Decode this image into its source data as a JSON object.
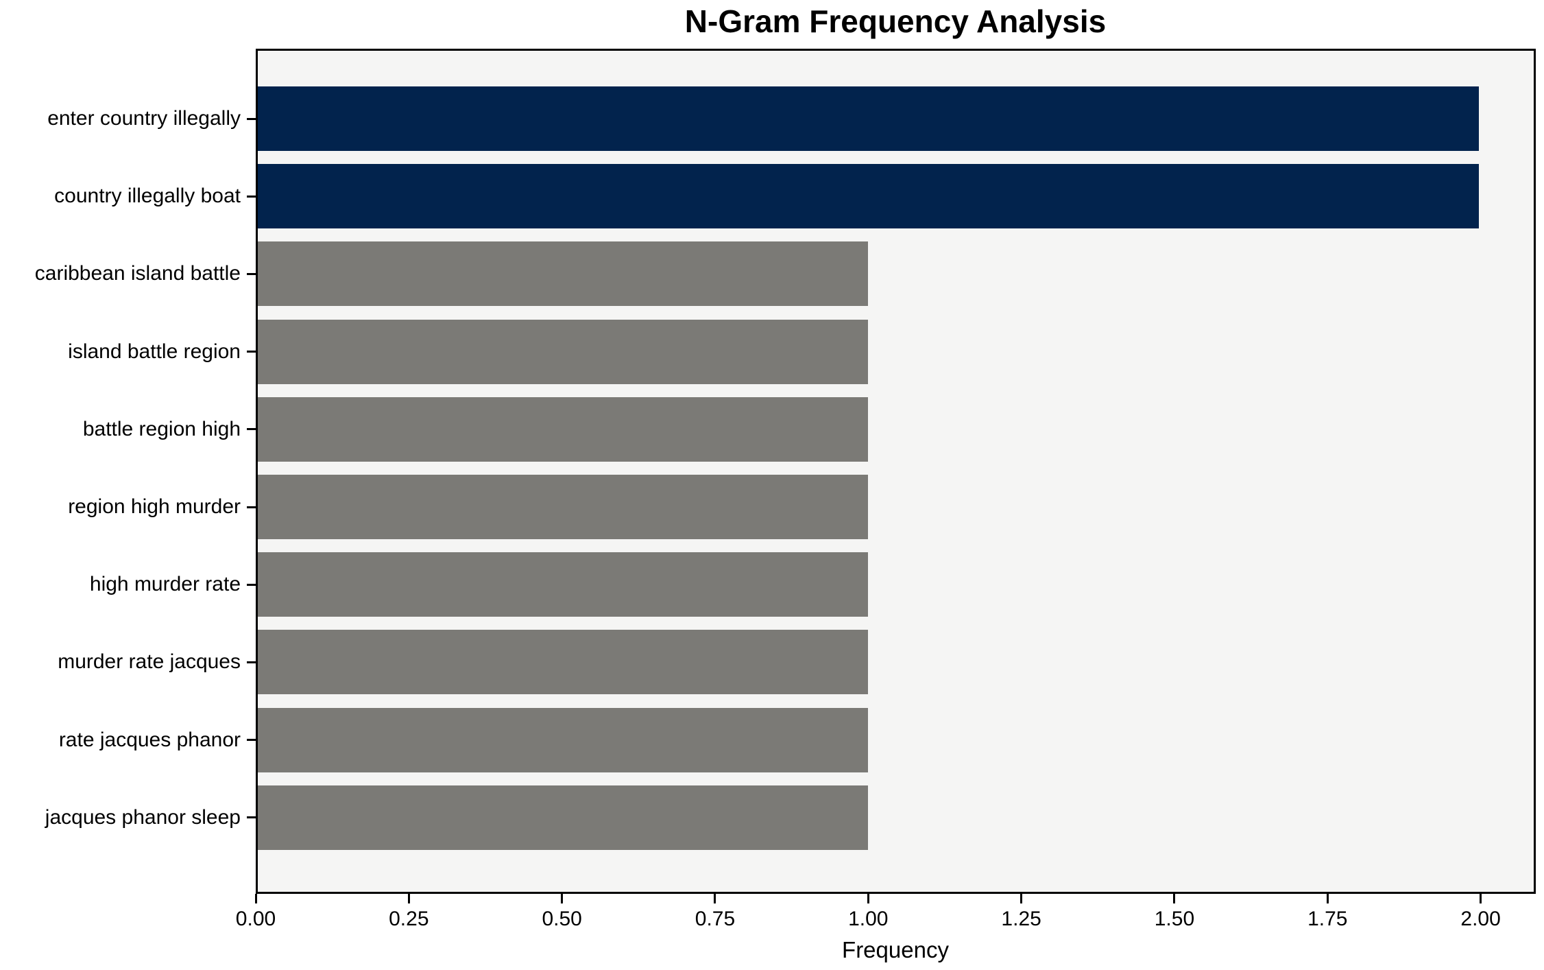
{
  "chart_data": {
    "type": "bar",
    "orientation": "horizontal",
    "title": "N-Gram Frequency Analysis",
    "xlabel": "Frequency",
    "ylabel": "",
    "categories": [
      "enter country illegally",
      "country illegally boat",
      "caribbean island battle",
      "island battle region",
      "battle region high",
      "region high murder",
      "high murder rate",
      "murder rate jacques",
      "rate jacques phanor",
      "jacques phanor sleep"
    ],
    "values": [
      2,
      2,
      1,
      1,
      1,
      1,
      1,
      1,
      1,
      1
    ],
    "bar_colors": [
      "#02234d",
      "#02234d",
      "#7b7a76",
      "#7b7a76",
      "#7b7a76",
      "#7b7a76",
      "#7b7a76",
      "#7b7a76",
      "#7b7a76",
      "#7b7a76"
    ],
    "x_ticks": [
      "0.00",
      "0.25",
      "0.50",
      "0.75",
      "1.00",
      "1.25",
      "1.50",
      "1.75",
      "2.00"
    ],
    "x_tick_values": [
      0,
      0.25,
      0.5,
      0.75,
      1.0,
      1.25,
      1.5,
      1.75,
      2.0
    ],
    "xlim": [
      0,
      2.09
    ],
    "grid": false,
    "legend": null,
    "colors": {
      "high_freq_bar": "#02234d",
      "low_freq_bar": "#7b7a76",
      "plot_background": "#f5f5f4",
      "figure_background": "#ffffff",
      "spine": "#000000",
      "text": "#000000"
    }
  }
}
